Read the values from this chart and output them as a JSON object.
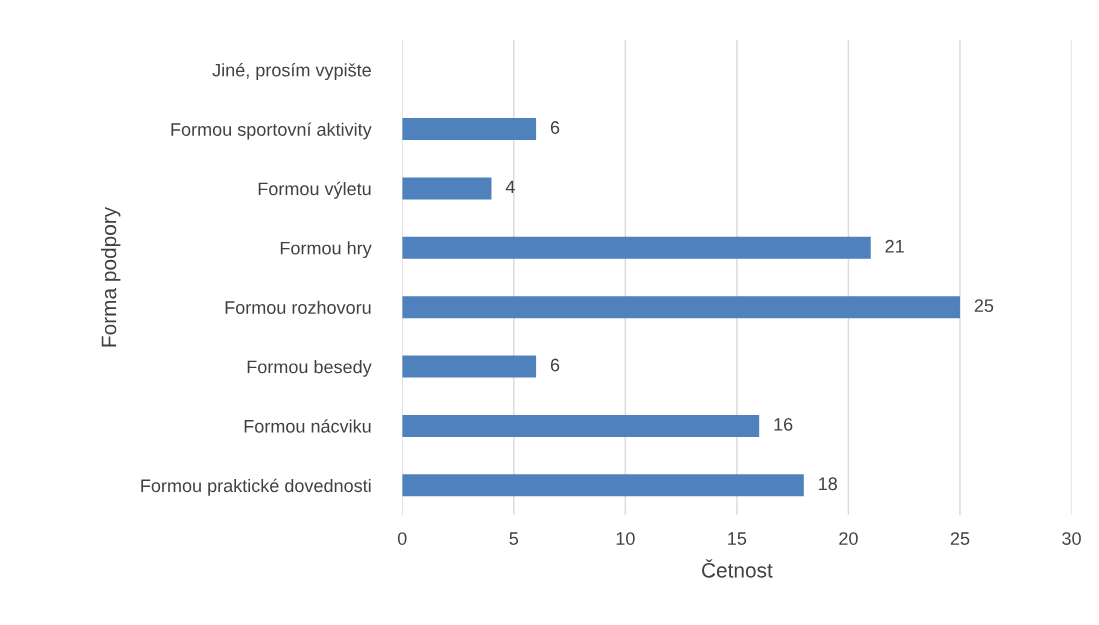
{
  "chart_data": {
    "type": "bar",
    "orientation": "horizontal",
    "xlabel": "Četnost",
    "ylabel": "Forma podpory",
    "categories": [
      "Jiné, prosím vypište",
      "Formou sportovní aktivity",
      "Formou výletu",
      "Formou hry",
      "Formou rozhovoru",
      "Formou besedy",
      "Formou nácviku",
      "Formou praktické dovednosti"
    ],
    "values": [
      null,
      6,
      4,
      21,
      25,
      6,
      16,
      18
    ],
    "color": "#4f81bd",
    "xlim": [
      0,
      30
    ],
    "xticks": [
      0,
      5,
      10,
      15,
      20,
      25,
      30
    ],
    "grid": "x",
    "data_labels": true
  }
}
